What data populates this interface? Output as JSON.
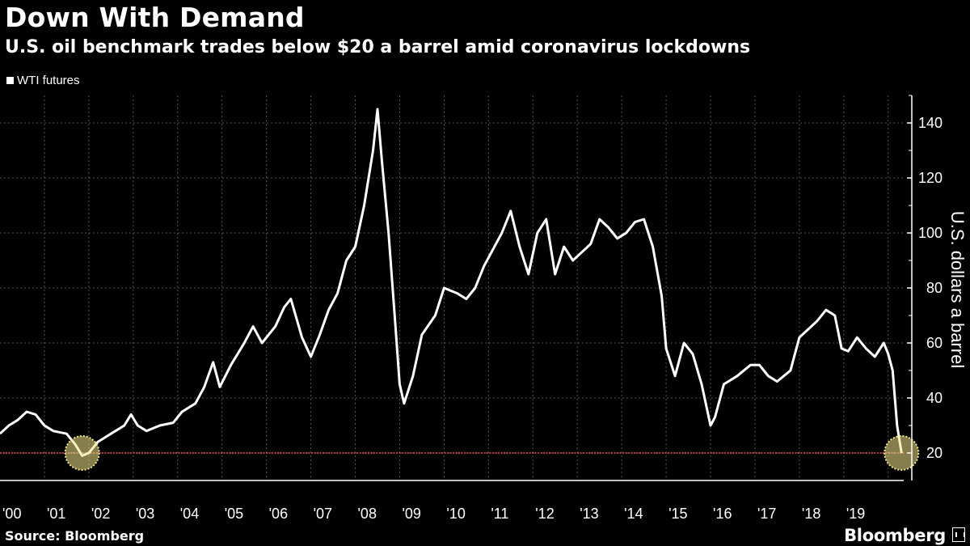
{
  "header": {
    "title": "Down With Demand",
    "subtitle": "U.S. oil benchmark trades below $20 a barrel amid coronavirus lockdowns"
  },
  "footer": {
    "source": "Source: Bloomberg",
    "brand": "Bloomberg"
  },
  "colors": {
    "background": "#000000",
    "line": "#ffffff",
    "grid": "#555555",
    "reference_line": "#e8554f",
    "highlight": "#f2e68a"
  },
  "chart_data": {
    "type": "line",
    "title": "Down With Demand",
    "subtitle": "U.S. oil benchmark trades below $20 a barrel amid coronavirus lockdowns",
    "xlabel": "",
    "ylabel": "U.S. dollars a barrel",
    "ylim": [
      10,
      150
    ],
    "xlim": [
      2000.0,
      2020.35
    ],
    "yticks": [
      20,
      40,
      60,
      80,
      100,
      120,
      140
    ],
    "xtick_labels": [
      "'00",
      "'01",
      "'02",
      "'03",
      "'04",
      "'05",
      "'06",
      "'07",
      "'08",
      "'09",
      "'10",
      "'11",
      "'12",
      "'13",
      "'14",
      "'15",
      "'16",
      "'17",
      "'18",
      "'19"
    ],
    "grid": true,
    "legend_position": "top-left",
    "series": [
      {
        "name": "WTI futures",
        "x": [
          2000.0,
          2000.2,
          2000.4,
          2000.6,
          2000.8,
          2001.0,
          2001.2,
          2001.5,
          2001.7,
          2001.85,
          2002.0,
          2002.2,
          2002.5,
          2002.8,
          2002.95,
          2003.1,
          2003.3,
          2003.6,
          2003.9,
          2004.1,
          2004.4,
          2004.6,
          2004.8,
          2004.95,
          2005.2,
          2005.5,
          2005.7,
          2005.9,
          2006.2,
          2006.4,
          2006.55,
          2006.8,
          2007.0,
          2007.2,
          2007.4,
          2007.6,
          2007.8,
          2008.0,
          2008.2,
          2008.4,
          2008.5,
          2008.6,
          2008.75,
          2008.9,
          2009.0,
          2009.1,
          2009.3,
          2009.5,
          2009.8,
          2010.0,
          2010.3,
          2010.5,
          2010.7,
          2010.9,
          2011.1,
          2011.3,
          2011.5,
          2011.7,
          2011.9,
          2012.1,
          2012.3,
          2012.5,
          2012.7,
          2012.9,
          2013.1,
          2013.3,
          2013.5,
          2013.7,
          2013.9,
          2014.1,
          2014.3,
          2014.5,
          2014.7,
          2014.9,
          2015.0,
          2015.2,
          2015.4,
          2015.6,
          2015.8,
          2016.0,
          2016.1,
          2016.3,
          2016.6,
          2016.9,
          2017.1,
          2017.3,
          2017.5,
          2017.8,
          2018.0,
          2018.2,
          2018.4,
          2018.6,
          2018.8,
          2018.95,
          2019.1,
          2019.3,
          2019.5,
          2019.7,
          2019.9,
          2020.0,
          2020.1,
          2020.2,
          2020.3
        ],
        "values": [
          27,
          30,
          32,
          35,
          34,
          30,
          28,
          27,
          23,
          19,
          20,
          24,
          27,
          30,
          34,
          30,
          28,
          30,
          31,
          35,
          38,
          44,
          53,
          44,
          52,
          60,
          66,
          60,
          66,
          73,
          76,
          62,
          55,
          63,
          72,
          78,
          90,
          95,
          110,
          130,
          145,
          126,
          100,
          67,
          45,
          38,
          48,
          63,
          70,
          80,
          78,
          76,
          80,
          88,
          94,
          100,
          108,
          95,
          85,
          100,
          105,
          85,
          95,
          90,
          93,
          96,
          105,
          102,
          98,
          100,
          104,
          105,
          95,
          77,
          58,
          48,
          60,
          56,
          45,
          30,
          33,
          45,
          48,
          52,
          52,
          48,
          46,
          50,
          62,
          65,
          68,
          72,
          70,
          58,
          57,
          62,
          58,
          55,
          60,
          56,
          50,
          30,
          20
        ]
      }
    ],
    "annotations": [
      {
        "type": "horizontal-line",
        "y": 20
      },
      {
        "type": "circle-highlight",
        "x": 2001.85,
        "y": 20
      },
      {
        "type": "circle-highlight",
        "x": 2020.3,
        "y": 20
      }
    ]
  }
}
